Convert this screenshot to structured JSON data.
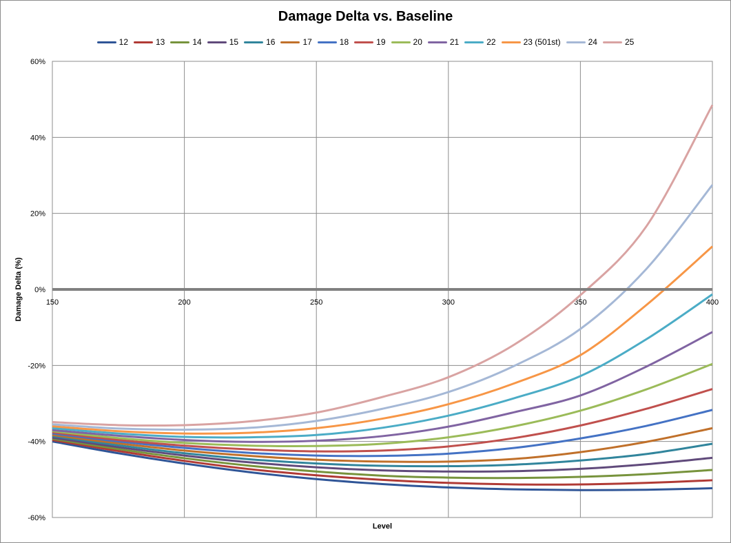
{
  "chart_data": {
    "type": "line",
    "title": "Damage Delta vs. Baseline",
    "xlabel": "Level",
    "ylabel": "Damage Delta (%)",
    "xlim": [
      150,
      400
    ],
    "ylim": [
      -60,
      60
    ],
    "x_ticks": [
      150,
      200,
      250,
      300,
      350,
      400
    ],
    "y_ticks": [
      60,
      40,
      20,
      0,
      -20,
      -40,
      -60
    ],
    "y_tick_labels": [
      "60%",
      "40%",
      "20%",
      "0%",
      "-20%",
      "-40%",
      "-60%"
    ],
    "grid": true,
    "legend_position": "top",
    "x": [
      150,
      175,
      200,
      225,
      250,
      275,
      300,
      325,
      350,
      375,
      400
    ],
    "series": [
      {
        "name": "12",
        "color": "#2f5597",
        "values": [
          -40,
          -43.1,
          -45.8,
          -48.1,
          -49.9,
          -51.2,
          -52.1,
          -52.6,
          -52.8,
          -52.7,
          -52.3
        ]
      },
      {
        "name": "13",
        "color": "#b03a35",
        "values": [
          -39.6,
          -42.5,
          -45.1,
          -47.3,
          -48.9,
          -50.1,
          -50.9,
          -51.3,
          -51.3,
          -50.9,
          -50.2
        ]
      },
      {
        "name": "14",
        "color": "#77933c",
        "values": [
          -39.3,
          -42,
          -44.4,
          -46.4,
          -47.9,
          -49,
          -49.5,
          -49.6,
          -49.3,
          -48.6,
          -47.5
        ]
      },
      {
        "name": "15",
        "color": "#604a7b",
        "values": [
          -39,
          -41.5,
          -43.7,
          -45.5,
          -46.8,
          -47.6,
          -47.9,
          -47.8,
          -47.2,
          -46,
          -44.3
        ]
      },
      {
        "name": "16",
        "color": "#31859c",
        "values": [
          -38.6,
          -41,
          -43.1,
          -44.7,
          -45.8,
          -46.4,
          -46.5,
          -46.1,
          -45,
          -43.3,
          -40.6
        ]
      },
      {
        "name": "17",
        "color": "#c0702a",
        "values": [
          -38.3,
          -40.5,
          -42.4,
          -43.8,
          -44.8,
          -45.3,
          -45.3,
          -44.6,
          -42.8,
          -40.1,
          -36.5
        ]
      },
      {
        "name": "18",
        "color": "#4472c4",
        "values": [
          -37.9,
          -40,
          -41.7,
          -43,
          -43.7,
          -43.8,
          -43.2,
          -41.7,
          -39.2,
          -35.9,
          -31.7
        ]
      },
      {
        "name": "19",
        "color": "#c0504d",
        "values": [
          -37.6,
          -39.6,
          -41.1,
          -42.1,
          -42.6,
          -42.4,
          -41.3,
          -39.1,
          -35.8,
          -31.4,
          -26.2
        ]
      },
      {
        "name": "20",
        "color": "#9bbb59",
        "values": [
          -37.3,
          -39.1,
          -40.4,
          -41.1,
          -41.2,
          -40.6,
          -38.9,
          -36,
          -31.9,
          -26.3,
          -19.6
        ]
      },
      {
        "name": "21",
        "color": "#8064a2",
        "values": [
          -37,
          -38.5,
          -39.6,
          -40.1,
          -39.8,
          -38.6,
          -36.1,
          -32.3,
          -27.9,
          -20.3,
          -11.2
        ]
      },
      {
        "name": "22",
        "color": "#4bacc6",
        "values": [
          -36.5,
          -37.9,
          -38.8,
          -38.9,
          -38.3,
          -36.4,
          -33.2,
          -28.6,
          -22.8,
          -13.1,
          -1.3
        ]
      },
      {
        "name": "23 (501st)",
        "color": "#f79646",
        "values": [
          -36,
          -37.3,
          -37.9,
          -37.7,
          -36.5,
          -34,
          -30.2,
          -24.7,
          -17.3,
          -4.1,
          11.3
        ]
      },
      {
        "name": "24",
        "color": "#a5b8d6",
        "values": [
          -35.5,
          -36.6,
          -36.9,
          -36.4,
          -34.6,
          -31.4,
          -27,
          -20.1,
          -10.4,
          5.4,
          27.5
        ]
      },
      {
        "name": "25",
        "color": "#d9a3a2",
        "values": [
          -34.9,
          -35.7,
          -35.7,
          -34.7,
          -32.4,
          -28.3,
          -23.1,
          -14.5,
          -1.5,
          16.6,
          48.5
        ]
      }
    ]
  }
}
